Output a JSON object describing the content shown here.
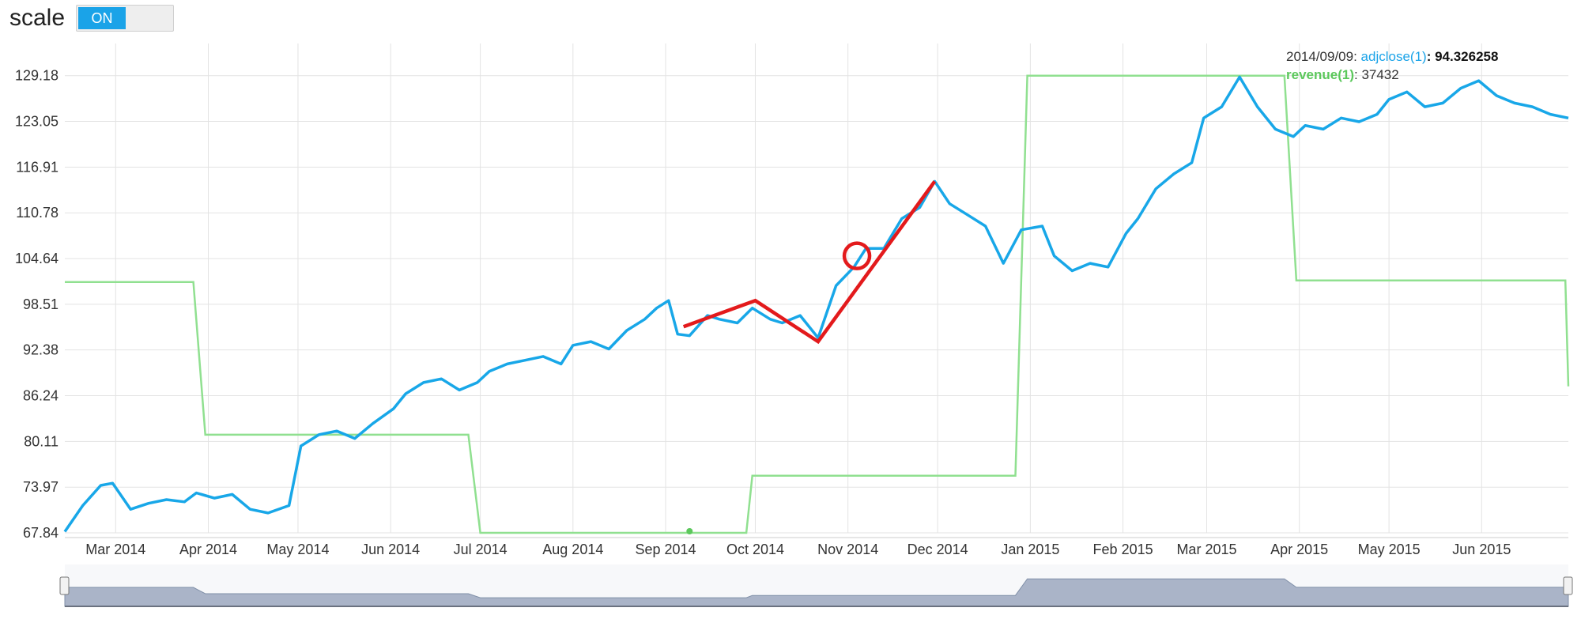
{
  "toolbar": {
    "scale_label": "scale",
    "toggle_state": "ON"
  },
  "tooltip": {
    "date": "2014/09/09",
    "series1_name": "adjclose(1)",
    "series1_value": "94.326258",
    "series2_name": "revenue(1)",
    "series2_value": "37432",
    "series1_color": "#1aa3e8",
    "series2_color": "#5cc85c"
  },
  "colors": {
    "adjclose": "#18a7e8",
    "revenue": "#90e090",
    "annotation": "#e31a1c",
    "navigator_fill": "#aab4c8",
    "grid": "#e3e3e3"
  },
  "chart_data": {
    "type": "line",
    "x_tick_labels": [
      "Mar 2014",
      "Apr 2014",
      "May 2014",
      "Jun 2014",
      "Jul 2014",
      "Aug 2014",
      "Sep 2014",
      "Oct 2014",
      "Nov 2014",
      "Dec 2014",
      "Jan 2015",
      "Feb 2015",
      "Mar 2015",
      "Apr 2015",
      "May 2015",
      "Jun 2015"
    ],
    "x_ticks": [
      "2014-03-01",
      "2014-04-01",
      "2014-05-01",
      "2014-06-01",
      "2014-07-01",
      "2014-08-01",
      "2014-09-01",
      "2014-10-01",
      "2014-11-01",
      "2014-12-01",
      "2015-01-01",
      "2015-02-01",
      "2015-03-01",
      "2015-04-01",
      "2015-05-01",
      "2015-06-01"
    ],
    "xlim": [
      "2014-02-12",
      "2015-06-30"
    ],
    "y_tick_labels": [
      "67.84",
      "73.97",
      "80.11",
      "86.24",
      "92.38",
      "98.51",
      "104.64",
      "110.78",
      "116.91",
      "123.05",
      "129.18"
    ],
    "ylim": [
      67.84,
      133.5
    ],
    "grid": true,
    "series": [
      {
        "name": "adjclose(1)",
        "x": [
          "2014-02-12",
          "2014-02-18",
          "2014-02-24",
          "2014-02-28",
          "2014-03-06",
          "2014-03-12",
          "2014-03-18",
          "2014-03-24",
          "2014-03-28",
          "2014-04-03",
          "2014-04-09",
          "2014-04-15",
          "2014-04-21",
          "2014-04-28",
          "2014-05-02",
          "2014-05-08",
          "2014-05-14",
          "2014-05-20",
          "2014-05-26",
          "2014-06-02",
          "2014-06-06",
          "2014-06-12",
          "2014-06-18",
          "2014-06-24",
          "2014-06-30",
          "2014-07-04",
          "2014-07-10",
          "2014-07-16",
          "2014-07-22",
          "2014-07-28",
          "2014-08-01",
          "2014-08-07",
          "2014-08-13",
          "2014-08-19",
          "2014-08-25",
          "2014-08-29",
          "2014-09-02",
          "2014-09-05",
          "2014-09-09",
          "2014-09-15",
          "2014-09-19",
          "2014-09-25",
          "2014-09-30",
          "2014-10-06",
          "2014-10-10",
          "2014-10-16",
          "2014-10-22",
          "2014-10-28",
          "2014-11-03",
          "2014-11-07",
          "2014-11-13",
          "2014-11-19",
          "2014-11-25",
          "2014-11-30",
          "2014-12-05",
          "2014-12-11",
          "2014-12-17",
          "2014-12-23",
          "2014-12-29",
          "2015-01-05",
          "2015-01-09",
          "2015-01-15",
          "2015-01-21",
          "2015-01-27",
          "2015-02-02",
          "2015-02-06",
          "2015-02-12",
          "2015-02-18",
          "2015-02-24",
          "2015-02-28",
          "2015-03-06",
          "2015-03-12",
          "2015-03-18",
          "2015-03-24",
          "2015-03-30",
          "2015-04-03",
          "2015-04-09",
          "2015-04-15",
          "2015-04-21",
          "2015-04-27",
          "2015-05-01",
          "2015-05-07",
          "2015-05-13",
          "2015-05-19",
          "2015-05-25",
          "2015-05-31",
          "2015-06-06",
          "2015-06-12",
          "2015-06-18",
          "2015-06-24",
          "2015-06-30"
        ],
        "y": [
          68.0,
          71.5,
          74.2,
          74.5,
          71.0,
          71.8,
          72.3,
          72.0,
          73.2,
          72.5,
          73.0,
          71.0,
          70.5,
          71.5,
          79.5,
          81.0,
          81.5,
          80.5,
          82.5,
          84.5,
          86.5,
          88.0,
          88.5,
          87.0,
          88.0,
          89.5,
          90.5,
          91.0,
          91.5,
          90.5,
          93.0,
          93.5,
          92.5,
          95.0,
          96.5,
          98.0,
          99.0,
          94.5,
          94.3,
          97.0,
          96.5,
          96.0,
          98.0,
          96.5,
          96.0,
          97.0,
          94.0,
          101.0,
          103.5,
          106.0,
          106.0,
          110.0,
          111.5,
          115.0,
          112.0,
          110.5,
          109.0,
          104.0,
          108.5,
          109.0,
          105.0,
          103.0,
          104.0,
          103.5,
          108.0,
          110.0,
          114.0,
          116.0,
          117.5,
          123.5,
          125.0,
          129.0,
          125.0,
          122.0,
          121.0,
          122.5,
          122.0,
          123.5,
          123.0,
          124.0,
          126.0,
          127.0,
          125.0,
          125.5,
          127.5,
          128.5,
          126.5,
          125.5,
          125.0,
          124.0,
          123.5
        ],
        "color": "#18a7e8"
      },
      {
        "name": "revenue(1)",
        "x": [
          "2014-02-12",
          "2014-03-27",
          "2014-03-31",
          "2014-06-27",
          "2014-07-01",
          "2014-09-28",
          "2014-09-30",
          "2014-12-27",
          "2014-12-31",
          "2015-03-27",
          "2015-03-31",
          "2015-06-29",
          "2015-06-30"
        ],
        "y": [
          101.5,
          101.5,
          81.0,
          81.0,
          67.84,
          67.84,
          75.5,
          75.5,
          129.18,
          129.18,
          101.7,
          101.7,
          87.5
        ],
        "color": "#90e090"
      }
    ],
    "annotation_zigzag": {
      "x": [
        "2014-09-07",
        "2014-10-01",
        "2014-10-22",
        "2014-11-30"
      ],
      "y": [
        95.5,
        99.0,
        93.5,
        115.0
      ],
      "circle_at": {
        "x": "2014-11-04",
        "y": 105.0
      }
    }
  }
}
